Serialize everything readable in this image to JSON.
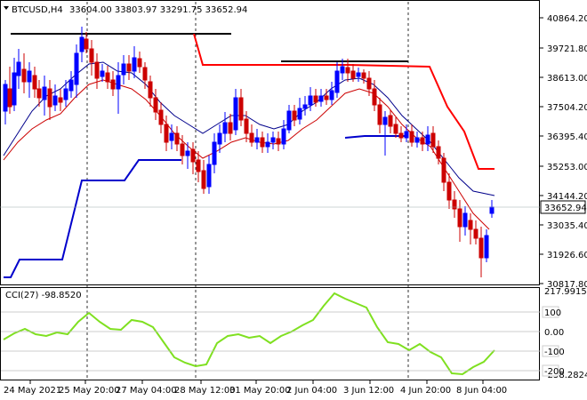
{
  "header": {
    "symbol": "BTCUSD,H4",
    "ohlc": "33604.00 33803.97 33291.75 33652.94"
  },
  "indicator": {
    "label": "CCI(27) -98.8520",
    "axis_top": "217.9915",
    "axis_bottom": "-258.2824",
    "levels": [
      {
        "value": 100,
        "label": "100"
      },
      {
        "value": 0,
        "label": "0.00"
      },
      {
        "value": -100,
        "label": "-100"
      },
      {
        "value": -200,
        "label": "-200"
      }
    ]
  },
  "price_axis": {
    "ticks": [
      "40864.20",
      "39721.80",
      "38613.00",
      "37504.20",
      "36395.40",
      "35253.00",
      "34144.20",
      "33035.40",
      "31926.60",
      "30817.80"
    ],
    "current": "33652.94"
  },
  "time_axis": {
    "labels": [
      "24 May 2021",
      "25 May 20:00",
      "27 May 04:00",
      "28 May 12:00",
      "31 May 20:00",
      "2 Jun 04:00",
      "3 Jun 12:00",
      "4 Jun 20:00",
      "8 Jun 04:00"
    ]
  },
  "colors": {
    "bull": "#0000ff",
    "bear": "#cc0000",
    "cci": "#7fe020",
    "resistance": "#ff0000",
    "support": "#0000cc",
    "ma_dark": "#00008b",
    "ma_red": "#cc0000",
    "level_lines": "#000000"
  }
}
